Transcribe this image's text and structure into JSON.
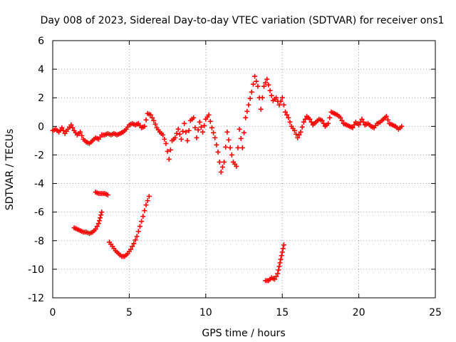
{
  "chart_data": {
    "type": "scatter",
    "title": "Day 008 of 2023, Sidereal Day-to-day VTEC variation (SDTVAR) for receiver ons1",
    "xlabel": "GPS time / hours",
    "ylabel": "SDTVAR / TECUs",
    "xlim": [
      0,
      25
    ],
    "ylim": [
      -12,
      6
    ],
    "xticks": [
      0,
      5,
      10,
      15,
      20,
      25
    ],
    "yticks": [
      -12,
      -10,
      -8,
      -6,
      -4,
      -2,
      0,
      2,
      4,
      6
    ],
    "xtick_labels": [
      "0",
      "5",
      "10",
      "15",
      "20",
      "25"
    ],
    "ytick_labels": [
      "-12",
      "-10",
      "-8",
      "-6",
      "-4",
      "-2",
      "0",
      "2",
      "4",
      "6"
    ],
    "grid": true,
    "marker": "+",
    "color": "#ff0000",
    "series": [
      {
        "name": "main",
        "points": [
          [
            0.0,
            -0.3
          ],
          [
            0.2,
            -0.2
          ],
          [
            0.4,
            -0.4
          ],
          [
            0.6,
            -0.1
          ],
          [
            0.8,
            -0.5
          ],
          [
            1.0,
            -0.2
          ],
          [
            1.2,
            0.1
          ],
          [
            1.4,
            -0.3
          ],
          [
            1.6,
            -0.6
          ],
          [
            1.8,
            -0.4
          ],
          [
            2.0,
            -0.9
          ],
          [
            2.2,
            -1.1
          ],
          [
            2.4,
            -1.2
          ],
          [
            2.6,
            -1.0
          ],
          [
            2.8,
            -0.8
          ],
          [
            3.0,
            -0.9
          ],
          [
            3.2,
            -0.6
          ],
          [
            3.4,
            -0.6
          ],
          [
            3.6,
            -0.5
          ],
          [
            3.8,
            -0.6
          ],
          [
            4.0,
            -0.5
          ],
          [
            4.2,
            -0.6
          ],
          [
            4.4,
            -0.5
          ],
          [
            4.6,
            -0.4
          ],
          [
            4.8,
            -0.2
          ],
          [
            5.0,
            0.1
          ],
          [
            5.2,
            0.2
          ],
          [
            5.4,
            0.1
          ],
          [
            5.6,
            0.2
          ],
          [
            5.8,
            -0.1
          ],
          [
            6.0,
            0.0
          ],
          [
            6.2,
            0.9
          ],
          [
            6.4,
            0.8
          ],
          [
            6.6,
            0.4
          ],
          [
            6.8,
            -0.1
          ],
          [
            7.0,
            -0.4
          ],
          [
            7.2,
            -0.6
          ],
          [
            7.4,
            -1.2
          ],
          [
            7.6,
            -2.3
          ],
          [
            7.8,
            -1.0
          ],
          [
            8.0,
            -0.8
          ],
          [
            8.2,
            -0.2
          ],
          [
            8.4,
            -0.9
          ],
          [
            8.6,
            0.2
          ],
          [
            8.8,
            -1.0
          ],
          [
            9.0,
            0.4
          ],
          [
            9.2,
            0.6
          ],
          [
            9.4,
            -0.8
          ],
          [
            9.6,
            0.3
          ],
          [
            9.8,
            -0.4
          ],
          [
            10.0,
            0.5
          ],
          [
            10.2,
            0.8
          ],
          [
            10.4,
            -0.1
          ],
          [
            10.6,
            -0.8
          ],
          [
            10.8,
            -1.8
          ],
          [
            11.0,
            -3.2
          ],
          [
            11.2,
            -2.5
          ],
          [
            11.4,
            -0.4
          ],
          [
            11.6,
            -1.5
          ],
          [
            11.8,
            -2.5
          ],
          [
            12.0,
            -2.8
          ],
          [
            12.2,
            -0.2
          ],
          [
            12.4,
            -1.5
          ],
          [
            12.6,
            0.6
          ],
          [
            12.8,
            1.5
          ],
          [
            13.0,
            2.4
          ],
          [
            13.2,
            3.5
          ],
          [
            13.4,
            2.8
          ],
          [
            13.6,
            1.2
          ],
          [
            13.8,
            2.8
          ],
          [
            14.0,
            3.3
          ],
          [
            14.2,
            2.5
          ],
          [
            14.4,
            1.8
          ],
          [
            14.6,
            2.0
          ],
          [
            14.8,
            1.5
          ],
          [
            15.0,
            2.0
          ],
          [
            15.2,
            1.0
          ],
          [
            15.4,
            0.6
          ],
          [
            15.6,
            0.0
          ],
          [
            15.8,
            -0.3
          ],
          [
            16.0,
            -0.8
          ],
          [
            16.2,
            -0.4
          ],
          [
            16.4,
            0.3
          ],
          [
            16.6,
            0.7
          ],
          [
            16.8,
            0.5
          ],
          [
            17.0,
            0.1
          ],
          [
            17.2,
            0.3
          ],
          [
            17.4,
            0.5
          ],
          [
            17.6,
            0.4
          ],
          [
            17.8,
            0.0
          ],
          [
            18.0,
            0.2
          ],
          [
            18.2,
            1.0
          ],
          [
            18.4,
            0.9
          ],
          [
            18.6,
            0.8
          ],
          [
            18.8,
            0.6
          ],
          [
            19.0,
            0.2
          ],
          [
            19.2,
            0.1
          ],
          [
            19.4,
            0.0
          ],
          [
            19.6,
            -0.1
          ],
          [
            19.8,
            0.3
          ],
          [
            20.0,
            0.1
          ],
          [
            20.2,
            0.5
          ],
          [
            20.4,
            0.1
          ],
          [
            20.6,
            0.2
          ],
          [
            20.8,
            0.0
          ],
          [
            21.0,
            -0.1
          ],
          [
            21.2,
            0.2
          ],
          [
            21.4,
            0.3
          ],
          [
            21.6,
            0.5
          ],
          [
            21.8,
            0.7
          ],
          [
            22.0,
            0.2
          ],
          [
            22.2,
            0.1
          ],
          [
            22.4,
            0.0
          ],
          [
            22.6,
            -0.2
          ],
          [
            22.8,
            0.0
          ]
        ]
      },
      {
        "name": "segment-1",
        "points": [
          [
            1.4,
            -7.1
          ],
          [
            1.6,
            -7.2
          ],
          [
            1.8,
            -7.3
          ],
          [
            2.0,
            -7.4
          ],
          [
            2.2,
            -7.4
          ],
          [
            2.4,
            -7.5
          ],
          [
            2.6,
            -7.4
          ],
          [
            2.8,
            -7.2
          ],
          [
            3.0,
            -6.8
          ],
          [
            3.1,
            -6.4
          ],
          [
            3.2,
            -6.0
          ]
        ]
      },
      {
        "name": "segment-2",
        "points": [
          [
            2.8,
            -4.6
          ],
          [
            3.0,
            -4.7
          ],
          [
            3.2,
            -4.7
          ],
          [
            3.4,
            -4.7
          ],
          [
            3.6,
            -4.8
          ]
        ]
      },
      {
        "name": "segment-3",
        "points": [
          [
            3.7,
            -8.1
          ],
          [
            3.9,
            -8.4
          ],
          [
            4.1,
            -8.7
          ],
          [
            4.3,
            -8.9
          ],
          [
            4.5,
            -9.1
          ],
          [
            4.7,
            -9.1
          ],
          [
            4.9,
            -8.9
          ],
          [
            5.1,
            -8.6
          ],
          [
            5.3,
            -8.2
          ],
          [
            5.5,
            -7.7
          ],
          [
            5.7,
            -7.0
          ],
          [
            5.9,
            -6.3
          ],
          [
            6.1,
            -5.5
          ],
          [
            6.3,
            -4.9
          ]
        ]
      },
      {
        "name": "segment-4",
        "points": [
          [
            13.9,
            -10.8
          ],
          [
            14.1,
            -10.8
          ],
          [
            14.3,
            -10.6
          ],
          [
            14.5,
            -10.7
          ],
          [
            14.7,
            -10.3
          ],
          [
            14.8,
            -9.8
          ],
          [
            14.9,
            -9.3
          ],
          [
            15.0,
            -8.8
          ],
          [
            15.1,
            -8.3
          ]
        ]
      }
    ]
  }
}
